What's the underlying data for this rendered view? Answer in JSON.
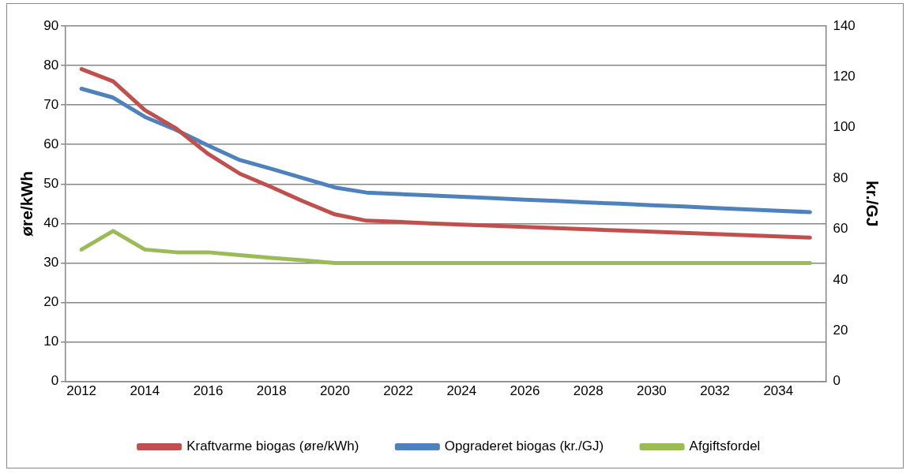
{
  "chart_data": {
    "type": "line",
    "ylabel": "øre/kWh",
    "y2label": "kr./GJ",
    "categories": [
      "2012",
      null,
      "2014",
      null,
      "2016",
      null,
      "2018",
      null,
      "2020",
      null,
      "2022",
      null,
      "2024",
      null,
      "2026",
      null,
      "2028",
      null,
      "2030",
      null,
      "2032",
      null,
      "2034",
      null
    ],
    "ylim": [
      0,
      90
    ],
    "yticks": [
      0,
      10,
      20,
      30,
      40,
      50,
      60,
      70,
      80,
      90
    ],
    "y2lim": [
      0,
      140
    ],
    "y2ticks": [
      0,
      20,
      40,
      60,
      80,
      100,
      120,
      140
    ],
    "series": [
      {
        "name": "Kraftvarme biogas (øre/kWh)",
        "color": "#c0504d",
        "values": [
          79.1,
          76.0,
          68.7,
          64.0,
          57.6,
          52.6,
          49.2,
          45.6,
          42.3,
          40.7,
          40.4,
          40.0,
          39.7,
          39.4,
          39.1,
          38.8,
          38.5,
          38.2,
          37.9,
          37.6,
          37.3,
          37.0,
          36.7,
          36.4
        ]
      },
      {
        "name": "Opgraderet biogas (kr./GJ)",
        "color": "#4f81bd",
        "axis": "y2",
        "values": [
          115.3,
          111.8,
          104.2,
          99.0,
          92.9,
          87.2,
          83.7,
          80.1,
          76.4,
          74.4,
          73.8,
          73.3,
          72.7,
          72.2,
          71.6,
          71.1,
          70.5,
          70.0,
          69.4,
          68.9,
          68.3,
          67.8,
          67.2,
          66.7
        ]
      },
      {
        "name": "Afgiftsfordel",
        "color": "#9bbb59",
        "values": [
          33.4,
          38.1,
          33.4,
          32.7,
          32.7,
          32.0,
          31.3,
          30.7,
          30,
          30,
          30,
          30,
          30,
          30,
          30,
          30,
          30,
          30,
          30,
          30,
          30,
          30,
          30,
          30
        ]
      }
    ],
    "grid": "y",
    "legend": "bottom",
    "marker": "none",
    "line_style": "solid"
  }
}
